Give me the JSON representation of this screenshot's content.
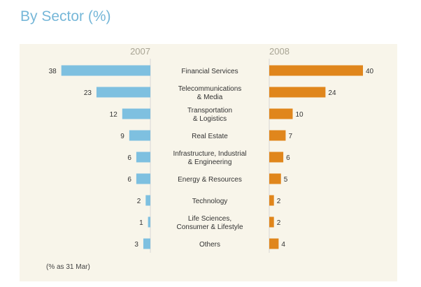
{
  "chart_data": {
    "type": "bar",
    "title": "By Sector (%)",
    "categories": [
      "Financial Services",
      "Telecommunications\n& Media",
      "Transportation\n& Logistics",
      "Real Estate",
      "Infrastructure, Industrial\n& Engineering",
      "Energy & Resources",
      "Technology",
      "Life Sciences,\nConsumer & Lifestyle",
      "Others"
    ],
    "series": [
      {
        "name": "2007",
        "values": [
          38,
          23,
          12,
          9,
          6,
          6,
          2,
          1,
          3
        ],
        "color": "#7ec0e0"
      },
      {
        "name": "2008",
        "values": [
          40,
          24,
          10,
          7,
          6,
          5,
          2,
          2,
          4
        ],
        "color": "#e0861c"
      }
    ],
    "note": "(% as 31 Mar)",
    "legend": "top",
    "grid": false
  }
}
